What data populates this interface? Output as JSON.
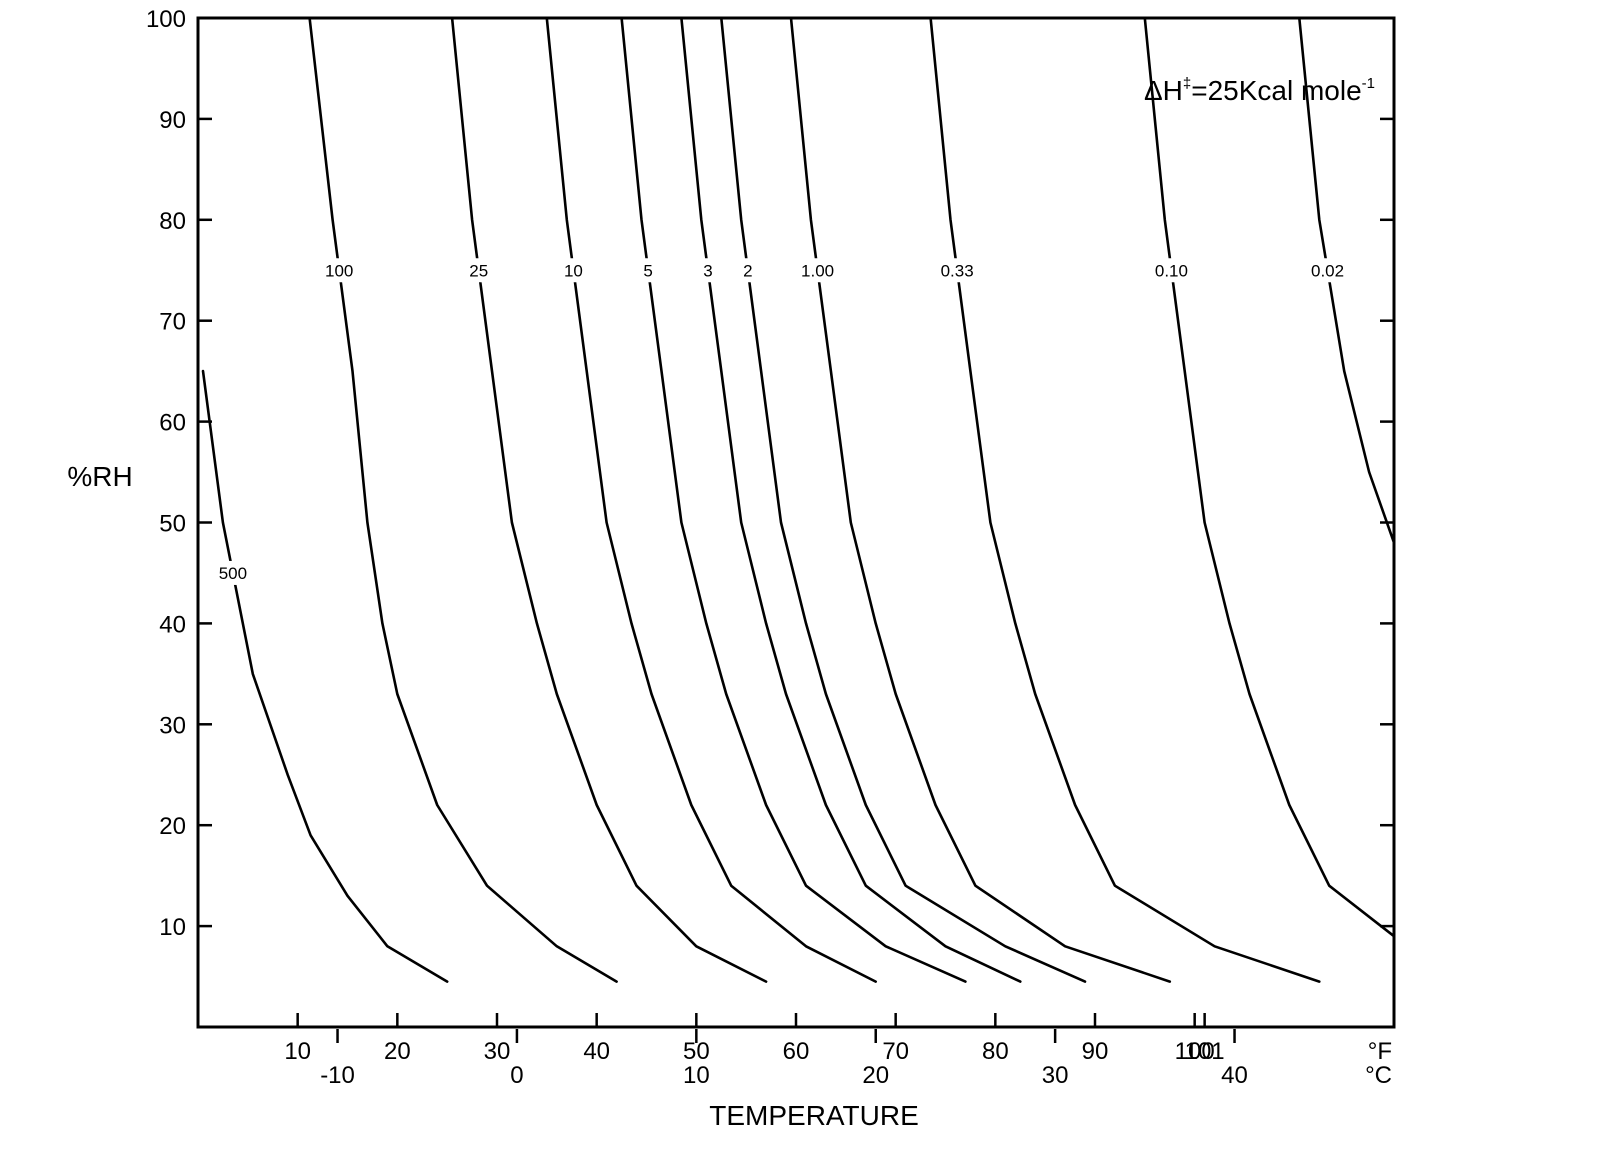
{
  "chart_data": {
    "type": "line",
    "title": "",
    "xlabel": "TEMPERATURE",
    "ylabel": "%RH",
    "annotation": {
      "prefix": "ΔH",
      "superscript": "‡",
      "main": "=25Kcal mole",
      "exponent": "-1"
    },
    "ylim": [
      0,
      100
    ],
    "y_ticks": [
      "10",
      "20",
      "30",
      "40",
      "50",
      "60",
      "70",
      "80",
      "90",
      "100"
    ],
    "xlim_F": [
      0,
      120
    ],
    "x_ticks_F": [
      "10",
      "20",
      "30",
      "40",
      "50",
      "60",
      "70",
      "80",
      "90",
      "100",
      "101"
    ],
    "x_ticks_C": [
      "-10",
      "0",
      "10",
      "20",
      "30",
      "40"
    ],
    "x_unit_F": "°F",
    "x_unit_C": "°C",
    "grid": false,
    "series": [
      {
        "name": "500",
        "x": [
          0.5,
          2.5,
          5.5,
          9,
          11.3,
          15,
          19,
          25
        ],
        "y": [
          65,
          50,
          35,
          25,
          19,
          13,
          8,
          4.5
        ]
      },
      {
        "name": "100",
        "x": [
          11.2,
          13.5,
          15.5,
          17,
          18.5,
          20,
          24,
          29,
          36,
          42
        ],
        "y": [
          100,
          80,
          65,
          50,
          40,
          33,
          22,
          14,
          8,
          4.5
        ]
      },
      {
        "name": "25",
        "x": [
          25.5,
          27.5,
          29.5,
          31.5,
          34,
          36,
          40,
          44,
          50,
          57
        ],
        "y": [
          100,
          80,
          65,
          50,
          40,
          33,
          22,
          14,
          8,
          4.5
        ]
      },
      {
        "name": "10",
        "x": [
          35,
          37,
          39,
          41,
          43.5,
          45.5,
          49.5,
          53.5,
          61,
          68
        ],
        "y": [
          100,
          80,
          65,
          50,
          40,
          33,
          22,
          14,
          8,
          4.5
        ]
      },
      {
        "name": "5",
        "x": [
          42.5,
          44.5,
          46.5,
          48.5,
          51,
          53,
          57,
          61,
          69,
          77
        ],
        "y": [
          100,
          80,
          65,
          50,
          40,
          33,
          22,
          14,
          8,
          4.5
        ]
      },
      {
        "name": "3",
        "x": [
          48.5,
          50.5,
          52.5,
          54.5,
          57,
          59,
          63,
          67,
          75,
          82.5
        ],
        "y": [
          100,
          80,
          65,
          50,
          40,
          33,
          22,
          14,
          8,
          4.5
        ]
      },
      {
        "name": "2",
        "x": [
          52.5,
          54.5,
          56.5,
          58.5,
          61,
          63,
          67,
          71,
          81,
          89
        ],
        "y": [
          100,
          80,
          65,
          50,
          40,
          33,
          22,
          14,
          8,
          4.5
        ]
      },
      {
        "name": "1.00",
        "x": [
          59.5,
          61.5,
          63.5,
          65.5,
          68,
          70,
          74,
          78,
          87,
          97.5
        ],
        "y": [
          100,
          80,
          65,
          50,
          40,
          33,
          22,
          14,
          8,
          4.5
        ]
      },
      {
        "name": "0.33",
        "x": [
          73.5,
          75.5,
          77.5,
          79.5,
          82,
          84,
          88,
          92,
          102,
          112.5
        ],
        "y": [
          100,
          80,
          65,
          50,
          40,
          33,
          22,
          14,
          8,
          4.5
        ]
      },
      {
        "name": "0.10",
        "x": [
          95,
          97,
          99,
          101,
          103.5,
          105.5,
          109.5,
          113.5,
          120
        ],
        "y": [
          100,
          80,
          65,
          50,
          40,
          33,
          22,
          14,
          9
        ]
      },
      {
        "name": "0.02",
        "x": [
          110.5,
          112.5,
          115,
          117.5,
          120
        ],
        "y": [
          100,
          80,
          65,
          55,
          48
        ]
      }
    ]
  }
}
